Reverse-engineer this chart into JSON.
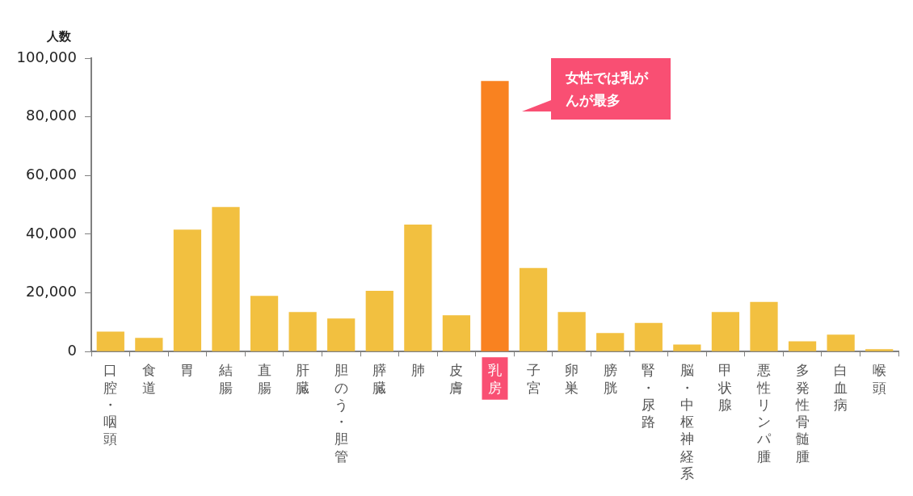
{
  "chart_data": {
    "type": "bar",
    "ylabel": "人数",
    "categories": [
      "口腔・咽頭",
      "食道",
      "胃",
      "結腸",
      "直腸",
      "肝臓",
      "胆のう・胆管",
      "膵臓",
      "肺",
      "皮膚",
      "乳房",
      "子宮",
      "卵巣",
      "膀胱",
      "腎・尿路",
      "脳・中枢神経系",
      "甲状腺",
      "悪性リンパ腫",
      "多発性骨髄腫",
      "白血病",
      "喉頭"
    ],
    "values": [
      6800,
      4700,
      41600,
      49300,
      19000,
      13500,
      11300,
      20700,
      43300,
      12400,
      92200,
      28500,
      13500,
      6300,
      9800,
      2400,
      13500,
      16900,
      3500,
      5800,
      800
    ],
    "colors": [
      "#f2c040",
      "#f2c040",
      "#f2c040",
      "#f2c040",
      "#f2c040",
      "#f2c040",
      "#f2c040",
      "#f2c040",
      "#f2c040",
      "#f2c040",
      "#f98220",
      "#f2c040",
      "#f2c040",
      "#f2c040",
      "#f2c040",
      "#f2c040",
      "#f2c040",
      "#f2c040",
      "#f2c040",
      "#f2c040",
      "#f2c040"
    ],
    "ylim": [
      0,
      100000
    ],
    "yticks": [
      0,
      {
        "value": 20000,
        "label": "20,000"
      },
      {
        "value": 40000,
        "label": "40,000"
      },
      {
        "value": 60000,
        "label": "60,000"
      },
      {
        "value": 80000,
        "label": "80,000"
      },
      {
        "value": 100000,
        "label": "100,000"
      }
    ],
    "grid": false,
    "legend": false,
    "annotations": [
      "女性では乳がんが最多"
    ]
  }
}
